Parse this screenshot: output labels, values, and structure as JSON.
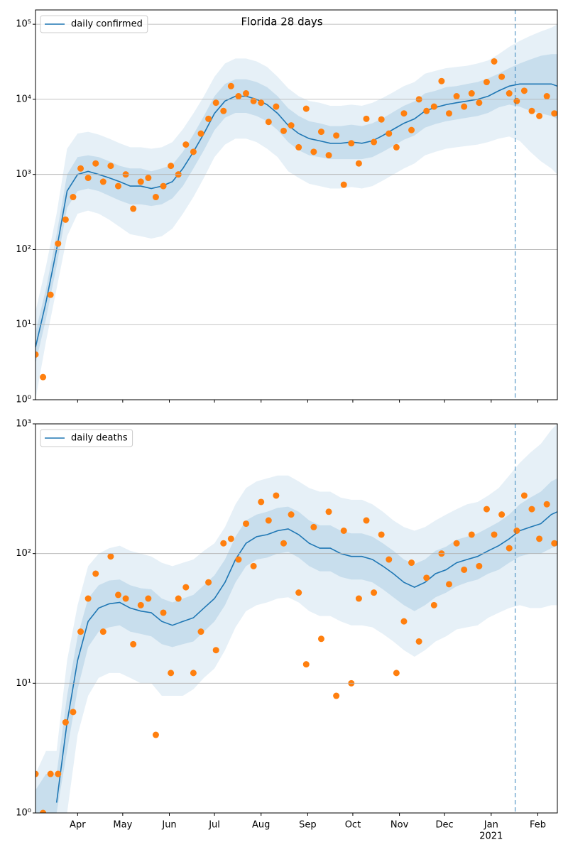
{
  "chart_data": [
    {
      "type": "line",
      "title": "Florida 28 days",
      "log": true,
      "grid": "y",
      "legend": "upper left",
      "xlim": [
        "2020-03-04",
        "2021-02-14"
      ],
      "ylim": [
        1,
        155000
      ],
      "yticks": [
        {
          "value": 1,
          "label": "10⁰"
        },
        {
          "value": 10,
          "label": "10¹"
        },
        {
          "value": 100,
          "label": "10²"
        },
        {
          "value": 1000,
          "label": "10³"
        },
        {
          "value": 10000,
          "label": "10⁴"
        },
        {
          "value": 100000,
          "label": "10⁵"
        }
      ],
      "x": [
        "2020-03-04",
        "2020-03-11",
        "2020-03-18",
        "2020-03-25",
        "2020-04-01",
        "2020-04-08",
        "2020-04-15",
        "2020-04-22",
        "2020-04-29",
        "2020-05-06",
        "2020-05-13",
        "2020-05-20",
        "2020-05-27",
        "2020-06-03",
        "2020-06-10",
        "2020-06-17",
        "2020-06-24",
        "2020-07-01",
        "2020-07-08",
        "2020-07-15",
        "2020-07-22",
        "2020-07-29",
        "2020-08-05",
        "2020-08-12",
        "2020-08-19",
        "2020-08-26",
        "2020-09-02",
        "2020-09-09",
        "2020-09-16",
        "2020-09-23",
        "2020-09-30",
        "2020-10-07",
        "2020-10-14",
        "2020-10-21",
        "2020-10-28",
        "2020-11-04",
        "2020-11-11",
        "2020-11-18",
        "2020-11-25",
        "2020-12-02",
        "2020-12-09",
        "2020-12-16",
        "2020-12-23",
        "2020-12-30",
        "2021-01-06",
        "2021-01-13",
        "2021-01-20",
        "2021-01-27",
        "2021-02-03",
        "2021-02-10",
        "2021-02-14"
      ],
      "bands": [
        {
          "color": "#1f77b4",
          "opacity": 0.11,
          "lower": [
            1,
            6,
            30,
            150,
            300,
            330,
            300,
            250,
            200,
            160,
            150,
            140,
            150,
            190,
            300,
            500,
            900,
            1700,
            2500,
            3000,
            3000,
            2700,
            2200,
            1700,
            1100,
            900,
            750,
            700,
            650,
            650,
            680,
            650,
            700,
            830,
            1000,
            1200,
            1400,
            1800,
            2000,
            2200,
            2300,
            2400,
            2500,
            2700,
            3000,
            3200,
            2800,
            2000,
            1500,
            1200,
            1000
          ],
          "upper": [
            15,
            60,
            300,
            2200,
            3500,
            3700,
            3400,
            3000,
            2600,
            2300,
            2300,
            2200,
            2300,
            2700,
            4000,
            6500,
            11000,
            20000,
            30000,
            35000,
            35000,
            32000,
            27000,
            20000,
            14000,
            11000,
            9500,
            9000,
            8200,
            8200,
            8500,
            8200,
            9000,
            10500,
            12500,
            15000,
            17000,
            22000,
            24000,
            26000,
            27000,
            28000,
            30000,
            33000,
            40000,
            50000,
            60000,
            70000,
            80000,
            90000,
            100000
          ]
        },
        {
          "color": "#1f77b4",
          "opacity": 0.15,
          "lower": [
            3,
            12,
            60,
            360,
            600,
            650,
            600,
            520,
            450,
            400,
            400,
            380,
            400,
            480,
            700,
            1200,
            2100,
            3900,
            5700,
            6600,
            6600,
            6000,
            5100,
            3900,
            2700,
            2100,
            1800,
            1700,
            1600,
            1600,
            1600,
            1600,
            1700,
            2000,
            2400,
            2900,
            3300,
            4200,
            4700,
            5100,
            5400,
            5700,
            6000,
            6600,
            7800,
            8500,
            8000,
            7000,
            6500,
            6000,
            5500
          ],
          "upper": [
            8,
            30,
            160,
            1000,
            1700,
            1800,
            1700,
            1500,
            1300,
            1200,
            1200,
            1100,
            1200,
            1350,
            2000,
            3400,
            6000,
            11000,
            16000,
            18500,
            18500,
            17000,
            14500,
            11000,
            7600,
            6000,
            5100,
            4800,
            4400,
            4400,
            4600,
            4400,
            4800,
            5600,
            6800,
            8200,
            9400,
            12000,
            13000,
            14500,
            15000,
            16000,
            17000,
            19000,
            22000,
            26000,
            30000,
            34000,
            38000,
            40000,
            40000
          ]
        }
      ],
      "series": [
        {
          "name": "daily confirmed",
          "color": "#1f77b4",
          "values": [
            5,
            20,
            100,
            600,
            1000,
            1100,
            1000,
            900,
            800,
            700,
            700,
            650,
            700,
            800,
            1200,
            2000,
            3500,
            6500,
            9500,
            11000,
            11000,
            10000,
            8500,
            6500,
            4500,
            3500,
            3000,
            2800,
            2600,
            2600,
            2700,
            2600,
            2800,
            3300,
            4000,
            4800,
            5500,
            7000,
            7800,
            8500,
            9000,
            9500,
            10000,
            11000,
            13000,
            15000,
            16000,
            16000,
            16000,
            16000,
            15000
          ]
        }
      ],
      "points": {
        "color": "#ff7f0e",
        "x": [
          "2020-03-04",
          "2020-03-09",
          "2020-03-14",
          "2020-03-19",
          "2020-03-24",
          "2020-03-29",
          "2020-04-03",
          "2020-04-08",
          "2020-04-13",
          "2020-04-18",
          "2020-04-23",
          "2020-04-28",
          "2020-05-03",
          "2020-05-08",
          "2020-05-13",
          "2020-05-18",
          "2020-05-23",
          "2020-05-28",
          "2020-06-02",
          "2020-06-07",
          "2020-06-12",
          "2020-06-17",
          "2020-06-22",
          "2020-06-27",
          "2020-07-02",
          "2020-07-07",
          "2020-07-12",
          "2020-07-17",
          "2020-07-22",
          "2020-07-27",
          "2020-08-01",
          "2020-08-06",
          "2020-08-11",
          "2020-08-16",
          "2020-08-21",
          "2020-08-26",
          "2020-08-31",
          "2020-09-05",
          "2020-09-10",
          "2020-09-15",
          "2020-09-20",
          "2020-09-25",
          "2020-09-30",
          "2020-10-05",
          "2020-10-10",
          "2020-10-15",
          "2020-10-20",
          "2020-10-25",
          "2020-10-30",
          "2020-11-04",
          "2020-11-09",
          "2020-11-14",
          "2020-11-19",
          "2020-11-24",
          "2020-11-29",
          "2020-12-04",
          "2020-12-09",
          "2020-12-14",
          "2020-12-19",
          "2020-12-24",
          "2020-12-29",
          "2021-01-03",
          "2021-01-08",
          "2021-01-13",
          "2021-01-18",
          "2021-01-23",
          "2021-01-28",
          "2021-02-02",
          "2021-02-07",
          "2021-02-12"
        ],
        "values": [
          4,
          2,
          25,
          120,
          250,
          500,
          1200,
          900,
          1400,
          800,
          1300,
          700,
          1000,
          350,
          800,
          900,
          500,
          700,
          1300,
          1000,
          2500,
          2000,
          3500,
          5500,
          9000,
          7000,
          15000,
          11000,
          12000,
          9500,
          9000,
          5000,
          8000,
          3800,
          4500,
          2300,
          7500,
          2000,
          3700,
          1800,
          3300,
          730,
          2600,
          1400,
          5500,
          2700,
          5400,
          3500,
          2300,
          6500,
          3900,
          10000,
          7000,
          8000,
          17500,
          6500,
          11000,
          8000,
          12000,
          9000,
          17000,
          32000,
          20000,
          12000,
          9500,
          13000,
          7000,
          6000,
          11000,
          6500
        ]
      },
      "vline": {
        "x": "2021-01-17",
        "color": "#1f77b4"
      }
    },
    {
      "type": "line",
      "log": true,
      "grid": "y",
      "legend": "upper left",
      "xlim": [
        "2020-03-04",
        "2021-02-14"
      ],
      "ylim": [
        1,
        1000
      ],
      "yticks": [
        {
          "value": 1,
          "label": "10⁰"
        },
        {
          "value": 10,
          "label": "10¹"
        },
        {
          "value": 100,
          "label": "10²"
        },
        {
          "value": 1000,
          "label": "10³"
        }
      ],
      "xticks": [
        {
          "value": "2020-04",
          "label": "Apr"
        },
        {
          "value": "2020-05",
          "label": "May"
        },
        {
          "value": "2020-06",
          "label": "Jun"
        },
        {
          "value": "2020-07",
          "label": "Jul"
        },
        {
          "value": "2020-08",
          "label": "Aug"
        },
        {
          "value": "2020-09",
          "label": "Sep"
        },
        {
          "value": "2020-10",
          "label": "Oct"
        },
        {
          "value": "2020-11",
          "label": "Nov"
        },
        {
          "value": "2020-12",
          "label": "Dec"
        },
        {
          "value": "2021-01",
          "label": "Jan"
        },
        {
          "value": "2021-02",
          "label": "Feb"
        }
      ],
      "xyear": {
        "value": "2021-01",
        "label": "2021"
      },
      "x": [
        "2020-03-04",
        "2020-03-11",
        "2020-03-18",
        "2020-03-25",
        "2020-04-01",
        "2020-04-08",
        "2020-04-15",
        "2020-04-22",
        "2020-04-29",
        "2020-05-06",
        "2020-05-13",
        "2020-05-20",
        "2020-05-27",
        "2020-06-03",
        "2020-06-10",
        "2020-06-17",
        "2020-06-24",
        "2020-07-01",
        "2020-07-08",
        "2020-07-15",
        "2020-07-22",
        "2020-07-29",
        "2020-08-05",
        "2020-08-12",
        "2020-08-19",
        "2020-08-26",
        "2020-09-02",
        "2020-09-09",
        "2020-09-16",
        "2020-09-23",
        "2020-09-30",
        "2020-10-07",
        "2020-10-14",
        "2020-10-21",
        "2020-10-28",
        "2020-11-04",
        "2020-11-11",
        "2020-11-18",
        "2020-11-25",
        "2020-12-02",
        "2020-12-09",
        "2020-12-16",
        "2020-12-23",
        "2020-12-30",
        "2021-01-06",
        "2021-01-13",
        "2021-01-20",
        "2021-01-27",
        "2021-02-03",
        "2021-02-10",
        "2021-02-14"
      ],
      "bands": [
        {
          "color": "#1f77b4",
          "opacity": 0.11,
          "lower": [
            1,
            1,
            1,
            1,
            4,
            8,
            11,
            12,
            12,
            11,
            10,
            10,
            8,
            8,
            8,
            9,
            11,
            13,
            18,
            27,
            36,
            40,
            42,
            45,
            46,
            42,
            36,
            33,
            33,
            30,
            28,
            28,
            27,
            24,
            21,
            18,
            16,
            18,
            21,
            23,
            26,
            27,
            28,
            32,
            35,
            38,
            40,
            38,
            38,
            40,
            40
          ],
          "upper": [
            2,
            3,
            3,
            15,
            40,
            80,
            100,
            110,
            115,
            105,
            100,
            95,
            85,
            80,
            85,
            90,
            105,
            120,
            160,
            240,
            320,
            360,
            380,
            400,
            400,
            360,
            320,
            300,
            300,
            270,
            260,
            260,
            240,
            210,
            180,
            160,
            150,
            160,
            180,
            200,
            220,
            240,
            250,
            280,
            320,
            400,
            500,
            600,
            700,
            900,
            1000
          ]
        },
        {
          "color": "#1f77b4",
          "opacity": 0.15,
          "lower": [
            1,
            1,
            1,
            3,
            9,
            19,
            25,
            27,
            28,
            25,
            24,
            23,
            20,
            19,
            20,
            21,
            25,
            30,
            40,
            60,
            80,
            90,
            93,
            100,
            103,
            93,
            80,
            73,
            73,
            66,
            63,
            63,
            60,
            53,
            46,
            40,
            36,
            40,
            46,
            50,
            56,
            60,
            63,
            70,
            75,
            85,
            95,
            100,
            100,
            110,
            115
          ],
          "upper": [
            1.5,
            2,
            2,
            8,
            23,
            45,
            57,
            62,
            63,
            57,
            54,
            53,
            45,
            42,
            45,
            48,
            57,
            68,
            90,
            135,
            180,
            200,
            210,
            225,
            230,
            210,
            180,
            165,
            165,
            150,
            143,
            143,
            135,
            120,
            105,
            90,
            83,
            90,
            105,
            113,
            128,
            135,
            143,
            158,
            175,
            200,
            240,
            270,
            300,
            360,
            380
          ]
        }
      ],
      "series": [
        {
          "name": "daily deaths",
          "color": "#1f77b4",
          "values": [
            null,
            null,
            1.2,
            5,
            15,
            30,
            38,
            41,
            42,
            38,
            36,
            35,
            30,
            28,
            30,
            32,
            38,
            45,
            60,
            90,
            120,
            135,
            140,
            150,
            155,
            140,
            120,
            110,
            110,
            100,
            95,
            95,
            90,
            80,
            70,
            60,
            55,
            60,
            70,
            75,
            85,
            90,
            95,
            105,
            115,
            130,
            150,
            160,
            170,
            200,
            210
          ]
        }
      ],
      "points": {
        "color": "#ff7f0e",
        "x": [
          "2020-03-04",
          "2020-03-09",
          "2020-03-14",
          "2020-03-19",
          "2020-03-24",
          "2020-03-29",
          "2020-04-03",
          "2020-04-08",
          "2020-04-13",
          "2020-04-18",
          "2020-04-23",
          "2020-04-28",
          "2020-05-03",
          "2020-05-08",
          "2020-05-13",
          "2020-05-18",
          "2020-05-23",
          "2020-05-28",
          "2020-06-02",
          "2020-06-07",
          "2020-06-12",
          "2020-06-17",
          "2020-06-22",
          "2020-06-27",
          "2020-07-02",
          "2020-07-07",
          "2020-07-12",
          "2020-07-17",
          "2020-07-22",
          "2020-07-27",
          "2020-08-01",
          "2020-08-06",
          "2020-08-11",
          "2020-08-16",
          "2020-08-21",
          "2020-08-26",
          "2020-08-31",
          "2020-09-05",
          "2020-09-10",
          "2020-09-15",
          "2020-09-20",
          "2020-09-25",
          "2020-09-30",
          "2020-10-05",
          "2020-10-10",
          "2020-10-15",
          "2020-10-20",
          "2020-10-25",
          "2020-10-30",
          "2020-11-04",
          "2020-11-09",
          "2020-11-14",
          "2020-11-19",
          "2020-11-24",
          "2020-11-29",
          "2020-12-04",
          "2020-12-09",
          "2020-12-14",
          "2020-12-19",
          "2020-12-24",
          "2020-12-29",
          "2021-01-03",
          "2021-01-08",
          "2021-01-13",
          "2021-01-18",
          "2021-01-23",
          "2021-01-28",
          "2021-02-02",
          "2021-02-07",
          "2021-02-12"
        ],
        "values": [
          2,
          1,
          2,
          2,
          5,
          6,
          25,
          45,
          70,
          25,
          95,
          48,
          45,
          20,
          40,
          45,
          4,
          35,
          12,
          45,
          55,
          12,
          25,
          60,
          18,
          120,
          130,
          90,
          170,
          80,
          250,
          180,
          280,
          120,
          200,
          50,
          14,
          160,
          22,
          210,
          8,
          150,
          10,
          45,
          180,
          50,
          140,
          90,
          12,
          30,
          85,
          21,
          65,
          40,
          100,
          58,
          120,
          75,
          140,
          80,
          220,
          140,
          200,
          110,
          150,
          280,
          220,
          130,
          240,
          120
        ]
      },
      "vline": {
        "x": "2021-01-17",
        "color": "#1f77b4"
      }
    }
  ]
}
